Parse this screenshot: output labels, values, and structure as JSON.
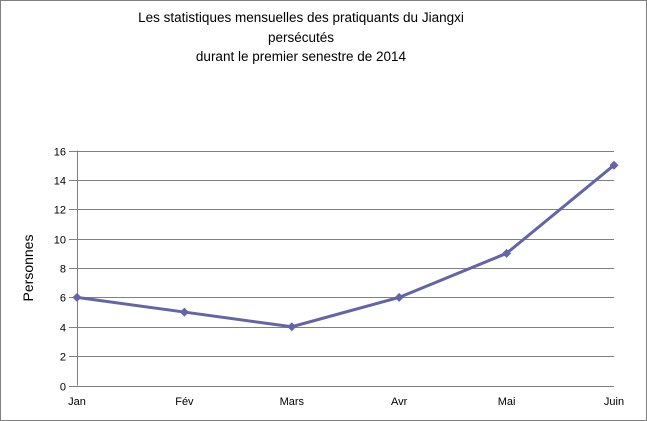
{
  "title": {
    "lines": [
      "Les statistiques mensuelles des pratiquants du Jiangxi",
      "persécutés",
      "durant le premier senestre de 2014"
    ]
  },
  "chart_data": {
    "type": "line",
    "title": "Les statistiques mensuelles des pratiquants du Jiangxi persécutés durant le premier senestre de 2014",
    "categories": [
      "Jan",
      "Fév",
      "Mars",
      "Avr",
      "Mai",
      "Juin"
    ],
    "series": [
      {
        "name": "Personnes",
        "values": [
          6,
          5,
          4,
          6,
          9,
          15
        ]
      }
    ],
    "xlabel": "",
    "ylabel": "Personnes",
    "ylim": [
      0,
      16
    ],
    "ytick_step": 2,
    "grid": true,
    "legend": "none",
    "marker": "diamond",
    "line_color": "#6464A6",
    "gridline_color": "#808080",
    "axis_text_color": "#000000",
    "background_color": "#FFFFFF",
    "border_color": "#808080"
  }
}
